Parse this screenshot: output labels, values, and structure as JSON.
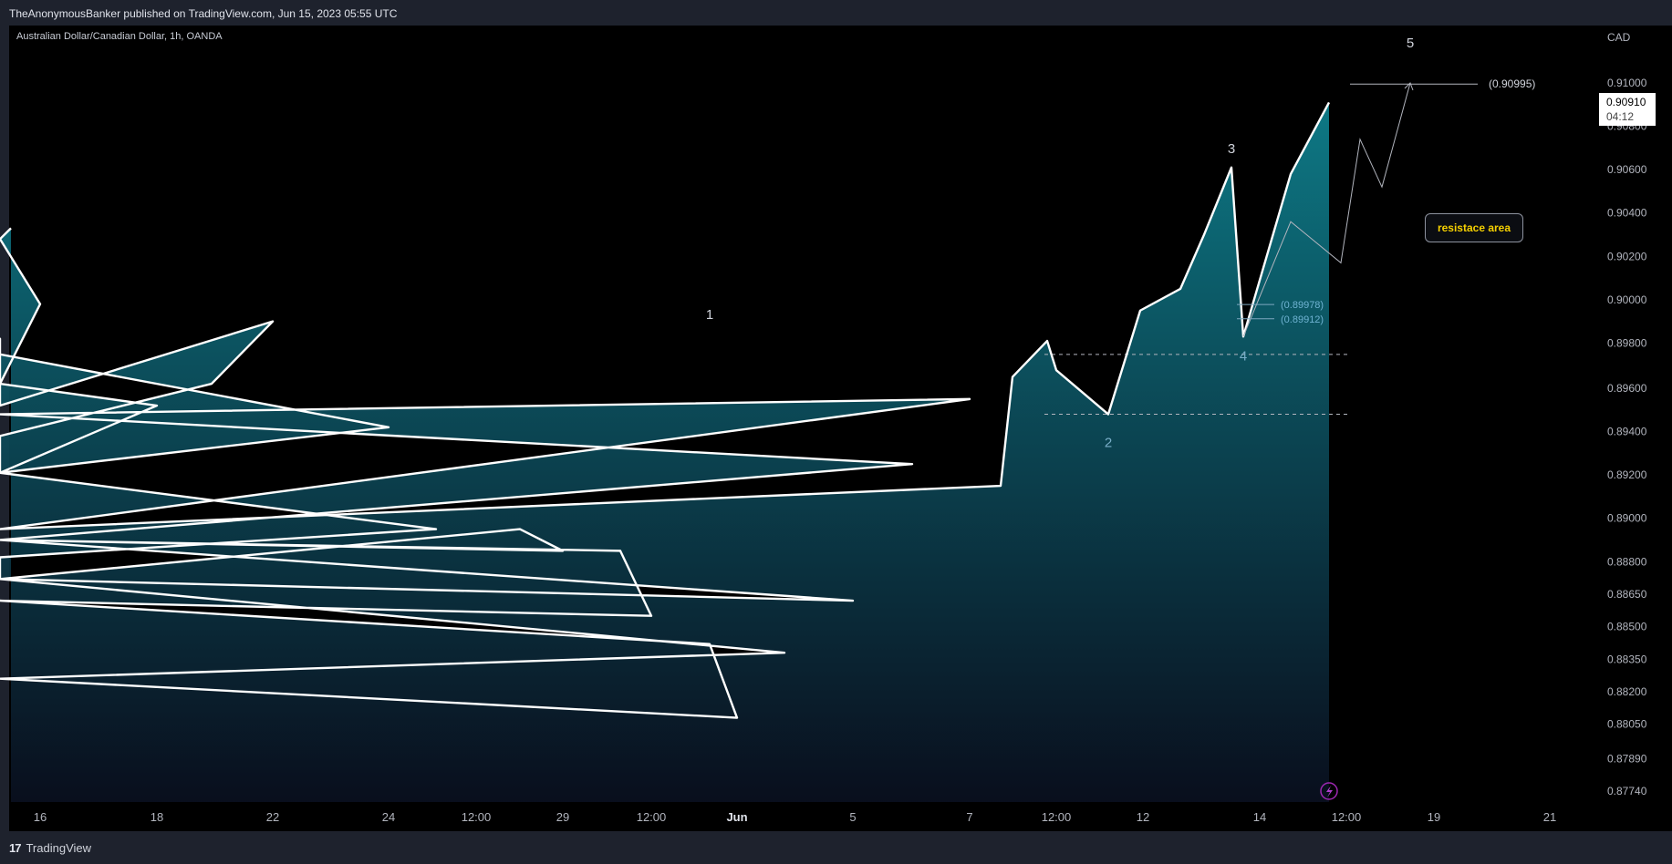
{
  "header": {
    "published_text": "TheAnonymousBanker published on TradingView.com, Jun 15, 2023 05:55 UTC"
  },
  "footer": {
    "brand": "TradingView",
    "logo_glyph": "17"
  },
  "symbol": {
    "title": "Australian Dollar/Canadian Dollar, 1h, OANDA",
    "currency": "CAD"
  },
  "price_label": {
    "price": "0.90910",
    "countdown": "04:12"
  },
  "annotations": {
    "waves": [
      {
        "label": "1",
        "x": "May 31 12:00",
        "y": 0.8981
      },
      {
        "label": "2",
        "x": "Jun 12 00:00",
        "y": 0.8943
      },
      {
        "label": "3",
        "x": "Jun 14 00:00",
        "y": 0.9061
      },
      {
        "label": "4",
        "x": "Jun 14 12:00",
        "y": 0.8983
      },
      {
        "label": "5",
        "x": "Jun 16 00:00",
        "y": 0.9108
      }
    ],
    "target_label": "(0.90995)",
    "target_value": 0.90995,
    "retrace_labels": [
      "(0.89978)",
      "(0.89912)"
    ],
    "retrace_values": [
      0.89978,
      0.89912
    ],
    "callout_text": "resistace area"
  },
  "chart_data": {
    "type": "area",
    "title": "Australian Dollar/Canadian Dollar, 1h, OANDA",
    "ylabel": "CAD",
    "y_ticks": [
      "0.91000",
      "0.90800",
      "0.90600",
      "0.90400",
      "0.90200",
      "0.90000",
      "0.89800",
      "0.89600",
      "0.89400",
      "0.89200",
      "0.89000",
      "0.88800",
      "0.88650",
      "0.88500",
      "0.88350",
      "0.88200",
      "0.88050",
      "0.87890",
      "0.87740"
    ],
    "x_ticks": [
      "16",
      "18",
      "22",
      "24",
      "12:00",
      "29",
      "12:00",
      "Jun",
      "5",
      "7",
      "12:00",
      "12",
      "14",
      "12:00",
      "19",
      "21"
    ],
    "ylim": [
      0.8768,
      0.9113
    ],
    "series": [
      {
        "name": "AUDCAD",
        "x": [
          "May 15 00:00",
          "May 15 12:00",
          "May 16 00:00",
          "May 16 12:00",
          "May 17 00:00",
          "May 17 12:00",
          "May 18 00:00",
          "May 18 12:00",
          "May 19 00:00",
          "May 19 12:00",
          "May 22 00:00",
          "May 22 12:00",
          "May 23 00:00",
          "May 23 12:00",
          "May 24 00:00",
          "May 24 12:00",
          "May 25 00:00",
          "May 25 12:00",
          "May 26 00:00",
          "May 26 12:00",
          "May 29 00:00",
          "May 29 12:00",
          "May 30 00:00",
          "May 30 12:00",
          "May 31 00:00",
          "May 31 12:00",
          "Jun 1 00:00",
          "Jun 1 12:00",
          "Jun 2 00:00",
          "Jun 2 12:00",
          "Jun 5 00:00",
          "Jun 5 12:00",
          "Jun 6 00:00",
          "Jun 6 12:00",
          "Jun 7 00:00",
          "Jun 7 12:00",
          "Jun 8 00:00",
          "Jun 8 12:00",
          "Jun 9 00:00",
          "Jun 9 12:00",
          "Jun 12 00:00",
          "Jun 12 12:00",
          "Jun 13 00:00",
          "Jun 13 12:00",
          "Jun 14 00:00",
          "Jun 14 12:00",
          "Jun 15 00:00",
          "Jun 15 05:55"
        ],
        "values": [
          0.9033,
          0.9028,
          0.8998,
          0.8962,
          0.8971,
          0.8962,
          0.8952,
          0.8921,
          0.8938,
          0.8962,
          0.899,
          0.8952,
          0.8982,
          0.8975,
          0.8942,
          0.8921,
          0.8895,
          0.8882,
          0.8872,
          0.8895,
          0.8885,
          0.889,
          0.8885,
          0.8855,
          0.8862,
          0.8842,
          0.8808,
          0.8826,
          0.8838,
          0.8872,
          0.8862,
          0.889,
          0.8925,
          0.8948,
          0.8955,
          0.8895,
          0.8915,
          0.8965,
          0.8981,
          0.8968,
          0.8948,
          0.8995,
          0.9005,
          0.903,
          0.9061,
          0.8983,
          0.9058,
          0.9091
        ]
      }
    ],
    "projection": {
      "x": [
        "Jun 14 12:00",
        "Jun 15 00:00",
        "Jun 15 06:00",
        "Jun 15 12:00",
        "Jun 15 18:00",
        "Jun 16 00:00"
      ],
      "values": [
        0.8983,
        0.9036,
        0.9017,
        0.9074,
        0.9052,
        0.91
      ]
    },
    "levels": [
      {
        "value": 0.8975,
        "style": "dashed"
      },
      {
        "value": 0.8948,
        "style": "dashed"
      }
    ],
    "colors": {
      "line": "#ffffff",
      "area_top": "#0e7f8c",
      "area_bottom": "#0a1020",
      "background": "#000000",
      "annotation": "#9598a1"
    }
  }
}
